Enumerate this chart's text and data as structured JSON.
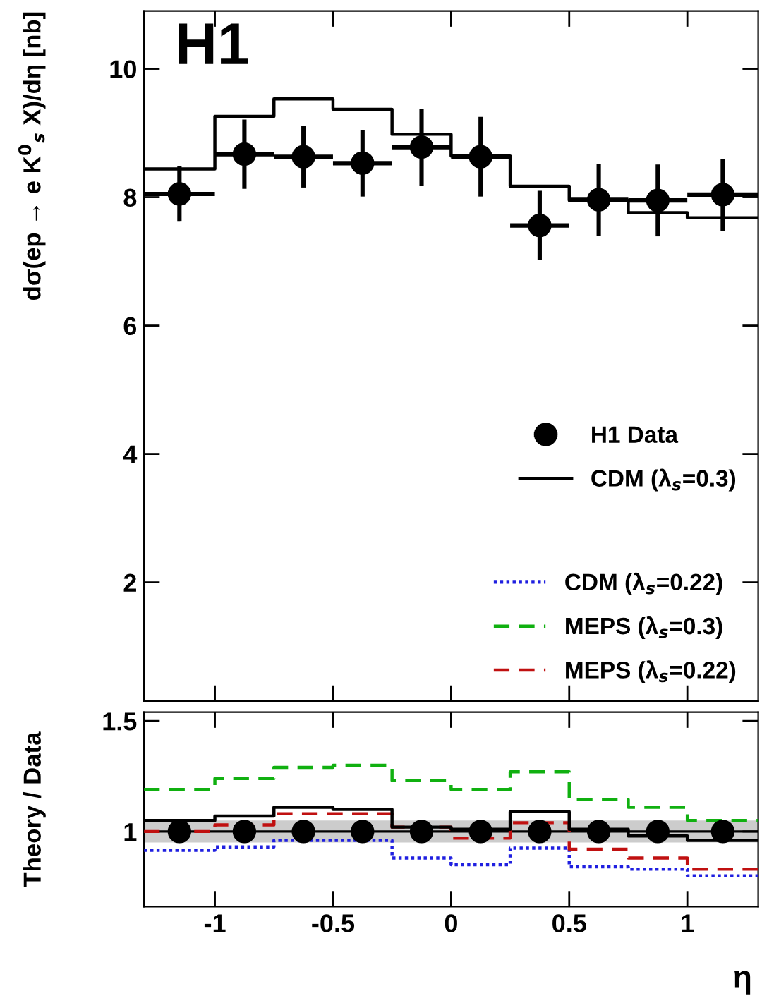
{
  "chart_data": [
    {
      "type": "scatter",
      "ylabel": "dσ(ep → e K$^{0}$$_{s}$ X)/dη [nb]",
      "annotations": [
        "H1"
      ],
      "xlim": [
        -1.3,
        1.3
      ],
      "xticks": [
        -1,
        -0.5,
        0,
        0.5,
        1
      ],
      "ylim": [
        0.15,
        10.9
      ],
      "yticks": [
        2,
        4,
        6,
        8,
        10
      ],
      "tick_labels": "y",
      "legend": "bottom right",
      "series": [
        {
          "name": "H1 Data",
          "color": "#000000",
          "marker": "circle",
          "x": [
            -1.15,
            -0.875,
            -0.625,
            -0.375,
            -0.125,
            0.125,
            0.375,
            0.625,
            0.875,
            1.15
          ],
          "values": [
            8.05,
            8.67,
            8.63,
            8.53,
            8.78,
            8.63,
            7.56,
            7.96,
            7.95,
            8.04
          ],
          "errors": [
            0.43,
            0.54,
            0.48,
            0.52,
            0.6,
            0.62,
            0.54,
            0.56,
            0.56,
            0.56
          ],
          "xerrors": [
            0.15,
            0.125,
            0.125,
            0.125,
            0.125,
            0.125,
            0.125,
            0.125,
            0.125,
            0.15
          ]
        },
        {
          "name": "CDM (λ$_{s}$=0.3)",
          "type": "step",
          "color": "#000000",
          "line_style": "solid",
          "x": [
            -1.3,
            -1,
            -0.75,
            -0.5,
            -0.25,
            0,
            0.25,
            0.5,
            0.75,
            1,
            1.3
          ],
          "values": [
            8.44,
            9.26,
            9.53,
            9.37,
            8.98,
            8.64,
            8.17,
            7.95,
            7.76,
            7.68,
            7.68
          ]
        }
      ]
    },
    {
      "type": "step",
      "xlabel": "η",
      "ylabel": "Theory / Data",
      "xlim": [
        -1.3,
        1.3
      ],
      "xticks": [
        -1,
        -0.5,
        0,
        0.5,
        1
      ],
      "ylim": [
        0.66,
        1.54
      ],
      "yticks": [
        1,
        1.5
      ],
      "legend": "top right",
      "bands": [
        {
          "axis": "y",
          "from": 0.95,
          "to": 1.05,
          "color": "#cccccc"
        }
      ],
      "ref_lines": [
        {
          "axis": "y",
          "value": 1,
          "color": "#000000",
          "line_style": "solid"
        }
      ],
      "series": [
        {
          "name": "CDM (λ$_{s}$=0.22)",
          "color": "#1f1fe0",
          "line_style": "dotted",
          "x": [
            -1.3,
            -1,
            -0.75,
            -0.5,
            -0.25,
            0,
            0.25,
            0.5,
            0.75,
            1,
            1.3
          ],
          "values": [
            0.915,
            0.93,
            0.96,
            0.96,
            0.88,
            0.85,
            0.925,
            0.84,
            0.83,
            0.8,
            0.8
          ]
        },
        {
          "name": "MEPS (λ$_{s}$=0.3)",
          "color": "#10b010",
          "line_style": "dashed",
          "x": [
            -1.3,
            -1,
            -0.75,
            -0.5,
            -0.25,
            0,
            0.25,
            0.5,
            0.75,
            1,
            1.3
          ],
          "values": [
            1.19,
            1.24,
            1.29,
            1.3,
            1.23,
            1.19,
            1.27,
            1.145,
            1.11,
            1.05,
            1.05
          ]
        },
        {
          "name": "MEPS (λ$_{s}$=0.22)",
          "color": "#c01010",
          "line_style": "dashed",
          "x": [
            -1.3,
            -1,
            -0.75,
            -0.5,
            -0.25,
            0,
            0.25,
            0.5,
            0.75,
            1,
            1.3
          ],
          "values": [
            1.0,
            1.03,
            1.08,
            1.08,
            1.02,
            0.97,
            1.04,
            0.92,
            0.88,
            0.83,
            0.83
          ]
        },
        {
          "color": "#000000",
          "line_style": "solid",
          "x": [
            -1.3,
            -1,
            -0.75,
            -0.5,
            -0.25,
            0,
            0.25,
            0.5,
            0.75,
            1,
            1.3
          ],
          "values": [
            1.05,
            1.07,
            1.11,
            1.1,
            1.02,
            1.01,
            1.09,
            1.01,
            0.98,
            0.96,
            0.96
          ]
        },
        {
          "type": "scatter",
          "color": "#000000",
          "marker": "circle",
          "x": [
            -1.15,
            -0.875,
            -0.625,
            -0.375,
            -0.125,
            0.125,
            0.375,
            0.625,
            0.875,
            1.15
          ],
          "values": [
            1,
            1,
            1,
            1,
            1,
            1,
            1,
            1,
            1,
            1
          ],
          "errors": [
            0.03,
            0.03,
            0.03,
            0.03,
            0.05,
            0.05,
            0.05,
            0.05,
            0.05,
            0.05
          ]
        }
      ]
    }
  ]
}
